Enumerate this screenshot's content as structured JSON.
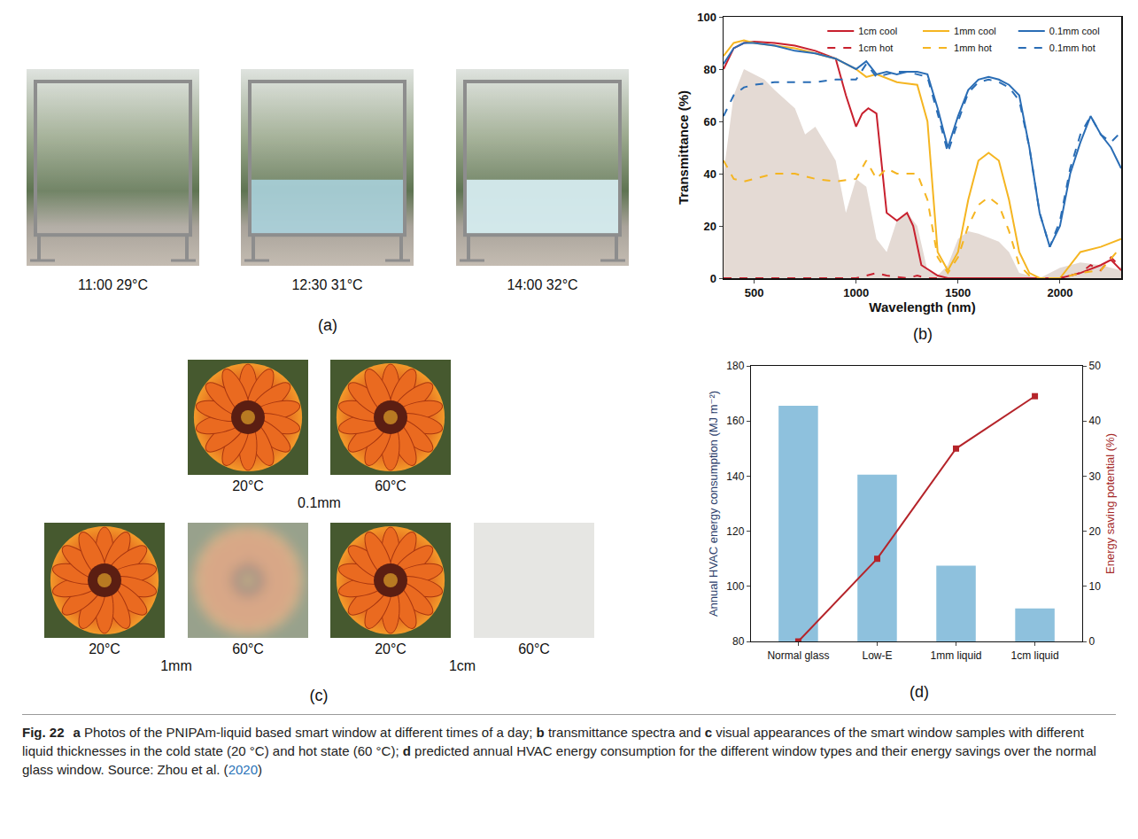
{
  "figure": {
    "panels": {
      "a": {
        "label": "(a)",
        "photos": [
          {
            "caption": "11:00 29°C"
          },
          {
            "caption": "12:30 31°C"
          },
          {
            "caption": "14:00 32°C"
          }
        ]
      },
      "b": {
        "label": "(b)"
      },
      "c": {
        "label": "(c)",
        "groups": [
          {
            "name": "0.1mm",
            "photos": [
              {
                "caption": "20°C"
              },
              {
                "caption": "60°C"
              }
            ]
          },
          {
            "name": "1mm",
            "photos": [
              {
                "caption": "20°C"
              },
              {
                "caption": "60°C"
              }
            ]
          },
          {
            "name": "1cm",
            "photos": [
              {
                "caption": "20°C"
              },
              {
                "caption": "60°C"
              }
            ]
          }
        ]
      },
      "d": {
        "label": "(d)"
      }
    },
    "caption": [
      {
        "text": "Fig. 22",
        "style": "bold"
      },
      {
        "text": "a",
        "style": "bold"
      },
      {
        "text": " Photos of the PNIPAm-liquid based smart window at different times of a day; "
      },
      {
        "text": "b",
        "style": "bold"
      },
      {
        "text": " transmittance spectra and "
      },
      {
        "text": "c",
        "style": "bold"
      },
      {
        "text": " visual appearances of the smart window samples with different liquid thicknesses in the cold state (20 °C) and hot state (60 °C); "
      },
      {
        "text": "d",
        "style": "bold"
      },
      {
        "text": " predicted annual HVAC energy consumption for the different window types and their energy savings over the normal glass window. Source: Zhou et al. ("
      },
      {
        "text": "2020",
        "style": "link"
      },
      {
        "text": ")"
      }
    ]
  },
  "chart_data": [
    {
      "type": "line",
      "xlabel": "Wavelength (nm)",
      "ylabel": "Transmittance (%)",
      "xlim": [
        350,
        2300
      ],
      "xticks": [
        500,
        1000,
        1500,
        2000
      ],
      "ylim": [
        0,
        100
      ],
      "yticks": [
        0,
        20,
        40,
        60,
        80,
        100
      ],
      "grid": false,
      "legend": "top right",
      "series": [
        {
          "type": "area",
          "color": "#e4dad4",
          "x": [
            350,
            400,
            450,
            500,
            550,
            600,
            700,
            750,
            800,
            900,
            950,
            1000,
            1050,
            1100,
            1150,
            1200,
            1250,
            1300,
            1350,
            1400,
            1450,
            1500,
            1550,
            1600,
            1700,
            1750,
            1800,
            1900,
            2000,
            2100,
            2200,
            2300
          ],
          "values": [
            40,
            70,
            80,
            78,
            76,
            72,
            65,
            55,
            58,
            45,
            25,
            38,
            35,
            15,
            10,
            22,
            25,
            20,
            3,
            1,
            5,
            15,
            18,
            17,
            14,
            10,
            2,
            0,
            4,
            6,
            5,
            3
          ]
        },
        {
          "name": "1cm cool",
          "color": "#c8202e",
          "line_style": "solid",
          "x": [
            350,
            400,
            450,
            500,
            600,
            700,
            800,
            900,
            950,
            1000,
            1030,
            1060,
            1100,
            1130,
            1150,
            1200,
            1250,
            1280,
            1320,
            1400,
            1450,
            1500,
            1700,
            2000,
            2100,
            2200,
            2250,
            2300
          ],
          "values": [
            80,
            88,
            90,
            90.5,
            90,
            89,
            87,
            84,
            70,
            58,
            63,
            65,
            63,
            40,
            25,
            22,
            25,
            20,
            5,
            1,
            0,
            0,
            0,
            0,
            2,
            5,
            7,
            3
          ]
        },
        {
          "name": "1mm cool",
          "color": "#f5b521",
          "line_style": "solid",
          "x": [
            350,
            400,
            450,
            500,
            600,
            700,
            800,
            900,
            1000,
            1050,
            1100,
            1200,
            1300,
            1350,
            1400,
            1450,
            1500,
            1550,
            1600,
            1650,
            1700,
            1750,
            1800,
            1850,
            1900,
            2000,
            2100,
            2200,
            2300
          ],
          "values": [
            85,
            90,
            91,
            90,
            89,
            88,
            86,
            84,
            80,
            77,
            78,
            75,
            74,
            60,
            10,
            3,
            10,
            30,
            45,
            48,
            45,
            30,
            10,
            2,
            0,
            0,
            10,
            12,
            15
          ]
        },
        {
          "name": "0.1mm cool",
          "color": "#2a6db5",
          "line_style": "solid",
          "x": [
            350,
            400,
            450,
            500,
            600,
            700,
            800,
            900,
            1000,
            1050,
            1100,
            1150,
            1200,
            1250,
            1300,
            1350,
            1400,
            1450,
            1500,
            1550,
            1600,
            1650,
            1700,
            1750,
            1800,
            1850,
            1900,
            1950,
            2000,
            2050,
            2100,
            2150,
            2200,
            2250,
            2300
          ],
          "values": [
            82,
            88,
            90,
            90,
            89,
            87,
            86,
            84,
            80,
            83,
            78,
            79,
            78,
            79,
            79,
            78,
            65,
            50,
            62,
            72,
            76,
            77,
            76,
            74,
            70,
            50,
            25,
            12,
            20,
            40,
            52,
            62,
            55,
            50,
            42
          ]
        },
        {
          "name": "1cm hot",
          "color": "#c8202e",
          "line_style": "dash",
          "x": [
            350,
            500,
            1000,
            1050,
            1100,
            1150,
            1250,
            1300,
            1350,
            1500,
            2000,
            2100,
            2150,
            2200,
            2250,
            2300
          ],
          "values": [
            0,
            0,
            0,
            1,
            2,
            1,
            0,
            1,
            0,
            0,
            0,
            2,
            5,
            3,
            8,
            4
          ]
        },
        {
          "name": "1mm hot",
          "color": "#f5b521",
          "line_style": "dash",
          "x": [
            350,
            400,
            450,
            500,
            600,
            700,
            800,
            900,
            1000,
            1050,
            1100,
            1150,
            1200,
            1300,
            1350,
            1400,
            1450,
            1500,
            1550,
            1600,
            1650,
            1700,
            1750,
            1800,
            1850,
            1900,
            2000,
            2100,
            2200,
            2300
          ],
          "values": [
            45,
            38,
            37,
            38,
            40,
            40,
            38,
            37,
            38,
            45,
            38,
            42,
            40,
            40,
            30,
            8,
            2,
            8,
            20,
            28,
            31,
            28,
            18,
            5,
            1,
            0,
            0,
            2,
            3,
            12
          ]
        },
        {
          "name": "0.1mm hot",
          "color": "#2a6db5",
          "line_style": "dash",
          "x": [
            350,
            400,
            450,
            500,
            600,
            700,
            800,
            900,
            1000,
            1050,
            1100,
            1150,
            1200,
            1250,
            1300,
            1350,
            1400,
            1450,
            1500,
            1550,
            1600,
            1650,
            1700,
            1750,
            1800,
            1850,
            1900,
            1950,
            2000,
            2050,
            2100,
            2150,
            2200,
            2250,
            2300
          ],
          "values": [
            62,
            70,
            73,
            74,
            75,
            75,
            75,
            76,
            76,
            82,
            77,
            78,
            79,
            79,
            78,
            77,
            63,
            48,
            60,
            71,
            75,
            76,
            75,
            73,
            68,
            50,
            25,
            12,
            22,
            42,
            55,
            62,
            55,
            52,
            56
          ]
        }
      ]
    },
    {
      "type": "bar",
      "categories": [
        "Normal glass",
        "Low-E",
        "1mm liquid",
        "1cm liquid"
      ],
      "ylabel": "Annual HVAC energy consumption (MJ m⁻²)",
      "y2label": "Energy saving potential (%)",
      "ylim": [
        80,
        180
      ],
      "yticks": [
        80,
        100,
        120,
        140,
        160,
        180
      ],
      "y2lim": [
        0,
        50
      ],
      "y2ticks": [
        0,
        10,
        20,
        30,
        40,
        50
      ],
      "grid": false,
      "series": [
        {
          "type": "bar",
          "color": "#8ec1dd",
          "values": [
            165.5,
            140.5,
            107.5,
            92
          ]
        },
        {
          "type": "line",
          "axis": "y2",
          "color": "#b5242a",
          "marker": "square",
          "values": [
            0,
            15,
            35,
            44.5
          ]
        }
      ]
    }
  ]
}
